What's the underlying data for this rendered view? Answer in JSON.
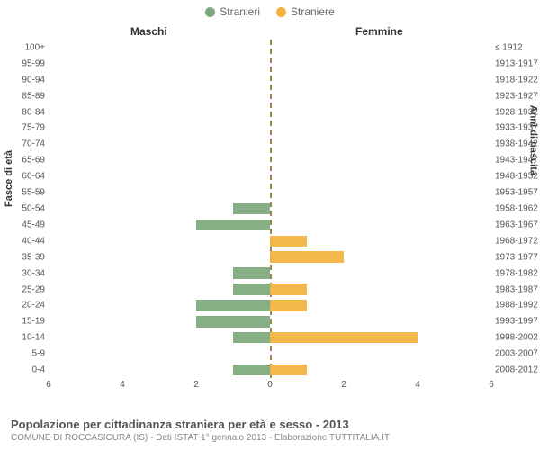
{
  "legend": {
    "male": {
      "label": "Stranieri",
      "color": "#7da87b"
    },
    "female": {
      "label": "Straniere",
      "color": "#f3b33d"
    }
  },
  "headers": {
    "male": "Maschi",
    "female": "Femmine"
  },
  "axis": {
    "left_label": "Fasce di età",
    "right_label": "Anni di nascita",
    "x_ticks": [
      6,
      4,
      2,
      0,
      2,
      4,
      6
    ],
    "x_max": 6
  },
  "chart": {
    "type": "population-pyramid",
    "bar_color_male": "#7da87b",
    "bar_color_female": "#f3b33d",
    "zero_line_color": "#99884a",
    "background": "#ffffff",
    "rows": [
      {
        "age": "100+",
        "birth": "≤ 1912",
        "m": 0,
        "f": 0
      },
      {
        "age": "95-99",
        "birth": "1913-1917",
        "m": 0,
        "f": 0
      },
      {
        "age": "90-94",
        "birth": "1918-1922",
        "m": 0,
        "f": 0
      },
      {
        "age": "85-89",
        "birth": "1923-1927",
        "m": 0,
        "f": 0
      },
      {
        "age": "80-84",
        "birth": "1928-1932",
        "m": 0,
        "f": 0
      },
      {
        "age": "75-79",
        "birth": "1933-1937",
        "m": 0,
        "f": 0
      },
      {
        "age": "70-74",
        "birth": "1938-1942",
        "m": 0,
        "f": 0
      },
      {
        "age": "65-69",
        "birth": "1943-1947",
        "m": 0,
        "f": 0
      },
      {
        "age": "60-64",
        "birth": "1948-1952",
        "m": 0,
        "f": 0
      },
      {
        "age": "55-59",
        "birth": "1953-1957",
        "m": 0,
        "f": 0
      },
      {
        "age": "50-54",
        "birth": "1958-1962",
        "m": 1,
        "f": 0
      },
      {
        "age": "45-49",
        "birth": "1963-1967",
        "m": 2,
        "f": 0
      },
      {
        "age": "40-44",
        "birth": "1968-1972",
        "m": 0,
        "f": 1
      },
      {
        "age": "35-39",
        "birth": "1973-1977",
        "m": 0,
        "f": 2
      },
      {
        "age": "30-34",
        "birth": "1978-1982",
        "m": 1,
        "f": 0
      },
      {
        "age": "25-29",
        "birth": "1983-1987",
        "m": 1,
        "f": 1
      },
      {
        "age": "20-24",
        "birth": "1988-1992",
        "m": 2,
        "f": 1
      },
      {
        "age": "15-19",
        "birth": "1993-1997",
        "m": 2,
        "f": 0
      },
      {
        "age": "10-14",
        "birth": "1998-2002",
        "m": 1,
        "f": 4
      },
      {
        "age": "5-9",
        "birth": "2003-2007",
        "m": 0,
        "f": 0
      },
      {
        "age": "0-4",
        "birth": "2008-2012",
        "m": 1,
        "f": 1
      }
    ]
  },
  "footer": {
    "title": "Popolazione per cittadinanza straniera per età e sesso - 2013",
    "subtitle": "COMUNE DI ROCCASICURA (IS) - Dati ISTAT 1° gennaio 2013 - Elaborazione TUTTITALIA.IT"
  }
}
